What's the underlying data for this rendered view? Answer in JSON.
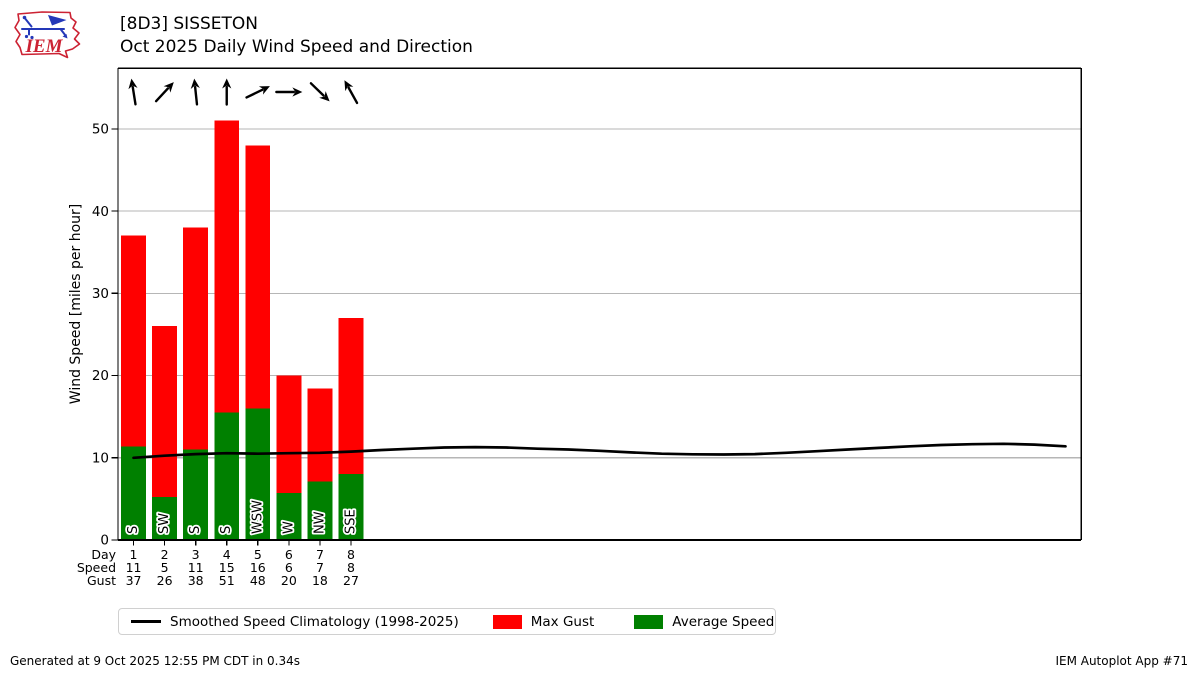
{
  "header": {
    "station_title": "[8D3] SISSETON",
    "subtitle": "Oct 2025 Daily Wind Speed and Direction",
    "logo_text": "IEM"
  },
  "chart_data": {
    "type": "bar",
    "title": "Oct 2025 Daily Wind Speed and Direction",
    "ylabel": "Wind Speed [miles per hour]",
    "ylim": [
      0,
      57.4
    ],
    "yticks": [
      0,
      10,
      20,
      30,
      40,
      50
    ],
    "month_days": 31,
    "grid": true,
    "legend_position": "bottom",
    "days": [
      1,
      2,
      3,
      4,
      5,
      6,
      7,
      8
    ],
    "series": [
      {
        "name": "Average Speed",
        "color": "#008000",
        "values": [
          11.4,
          5.2,
          11.0,
          15.5,
          16.0,
          5.7,
          7.1,
          8.0
        ]
      },
      {
        "name": "Max Gust",
        "color": "#ff0000",
        "values": [
          37,
          26,
          38,
          51,
          48,
          20,
          18.4,
          27
        ]
      }
    ],
    "table": {
      "day_label": "Day",
      "speed_label": "Speed",
      "gust_label": "Gust",
      "day": [
        1,
        2,
        3,
        4,
        5,
        6,
        7,
        8
      ],
      "speed": [
        11,
        5,
        11,
        15,
        16,
        6,
        7,
        8
      ],
      "gust": [
        37,
        26,
        38,
        51,
        48,
        20,
        18,
        27
      ]
    },
    "wind_directions": [
      "S",
      "SW",
      "S",
      "S",
      "WSW",
      "W",
      "NW",
      "SSE"
    ],
    "arrow_angles_deg": [
      -9,
      43,
      -6,
      0,
      64,
      90,
      134,
      -29
    ],
    "climatology": {
      "name": "Smoothed Speed Climatology (1998-2025)",
      "color": "#000000",
      "days": [
        1,
        2,
        3,
        4,
        5,
        6,
        7,
        8,
        9,
        10,
        11,
        12,
        13,
        14,
        15,
        16,
        17,
        18,
        19,
        20,
        21,
        22,
        23,
        24,
        25,
        26,
        27,
        28,
        29,
        30,
        31
      ],
      "values": [
        10.0,
        10.25,
        10.45,
        10.55,
        10.5,
        10.55,
        10.6,
        10.75,
        10.95,
        11.1,
        11.25,
        11.3,
        11.25,
        11.1,
        11.0,
        10.85,
        10.65,
        10.5,
        10.42,
        10.4,
        10.45,
        10.6,
        10.8,
        11.0,
        11.2,
        11.4,
        11.55,
        11.65,
        11.7,
        11.6,
        11.4
      ]
    },
    "colors": {
      "grid": "#b6b6b6",
      "spine": "#000000",
      "arrow": "#000000"
    }
  },
  "legend": {
    "items": [
      {
        "label": "Smoothed Speed Climatology (1998-2025)",
        "swatch": "line",
        "color": "#000000"
      },
      {
        "label": "Max Gust",
        "swatch": "rect",
        "color": "#ff0000"
      },
      {
        "label": "Average Speed",
        "swatch": "rect",
        "color": "#008000"
      }
    ]
  },
  "footer": {
    "generated_text": "Generated at 9 Oct 2025 12:55 PM CDT in 0.34s",
    "app_text": "IEM Autoplot App #71"
  }
}
